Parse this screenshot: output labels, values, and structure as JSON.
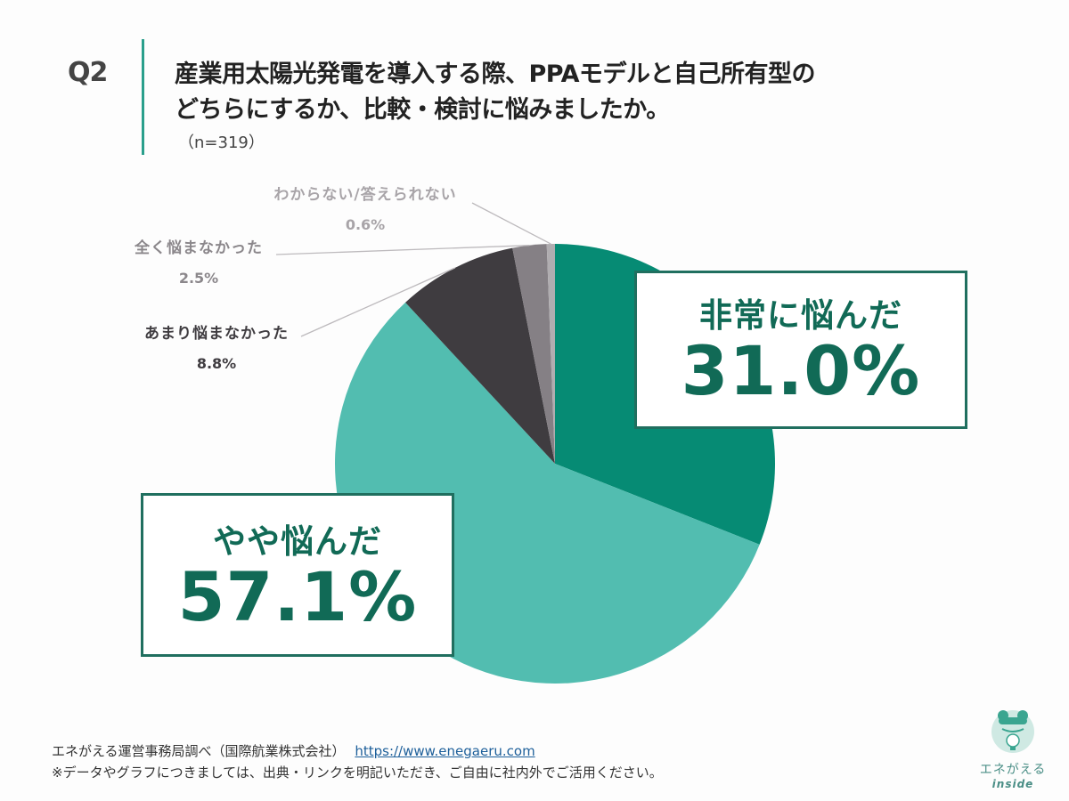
{
  "header": {
    "question_number": "Q2",
    "title_line1": "産業用太陽光発電を導入する際、PPAモデルと自己所有型の",
    "title_line2": "どちらにするか、比較・検討に悩みましたか。",
    "sample_size": "（n=319）"
  },
  "labels": {
    "very_worried": {
      "label": "非常に悩んだ",
      "value": "31.0%"
    },
    "somewhat_worried": {
      "label": "やや悩んだ",
      "value": "57.1%"
    },
    "not_much": {
      "label": "あまり悩まなかった",
      "value": "8.8%"
    },
    "not_at_all": {
      "label": "全く悩まなかった",
      "value": "2.5%"
    },
    "dont_know": {
      "label": "わからない/答えられない",
      "value": "0.6%"
    }
  },
  "footer": {
    "source": "エネがえる運営事務局調べ（国際航業株式会社）",
    "url": "https://www.enegaeru.com",
    "note": "※データやグラフにつきましては、出典・リンクを明記いただき、ご自由に社内外でご活用ください。"
  },
  "logo": {
    "text": "エネがえる",
    "sub": "inside"
  },
  "colors": {
    "very_worried": "#068b74",
    "somewhat_worried": "#52bdb0",
    "not_much": "#3f3c40",
    "not_at_all": "#858085",
    "dont_know": "#b0adb0",
    "accent": "#116a56"
  },
  "chart_data": {
    "type": "pie",
    "title": "産業用太陽光発電を導入する際、PPAモデルと自己所有型のどちらにするか、比較・検討に悩みましたか。",
    "subtitle": "（n=319）",
    "categories": [
      "非常に悩んだ",
      "やや悩んだ",
      "あまり悩まなかった",
      "全く悩まなかった",
      "わからない/答えられない"
    ],
    "values": [
      31.0,
      57.1,
      8.8,
      2.5,
      0.6
    ],
    "unit": "%",
    "colors": [
      "#068b74",
      "#52bdb0",
      "#3f3c40",
      "#858085",
      "#b0adb0"
    ],
    "start_angle": "12 o'clock",
    "direction": "clockwise",
    "n": 319
  }
}
